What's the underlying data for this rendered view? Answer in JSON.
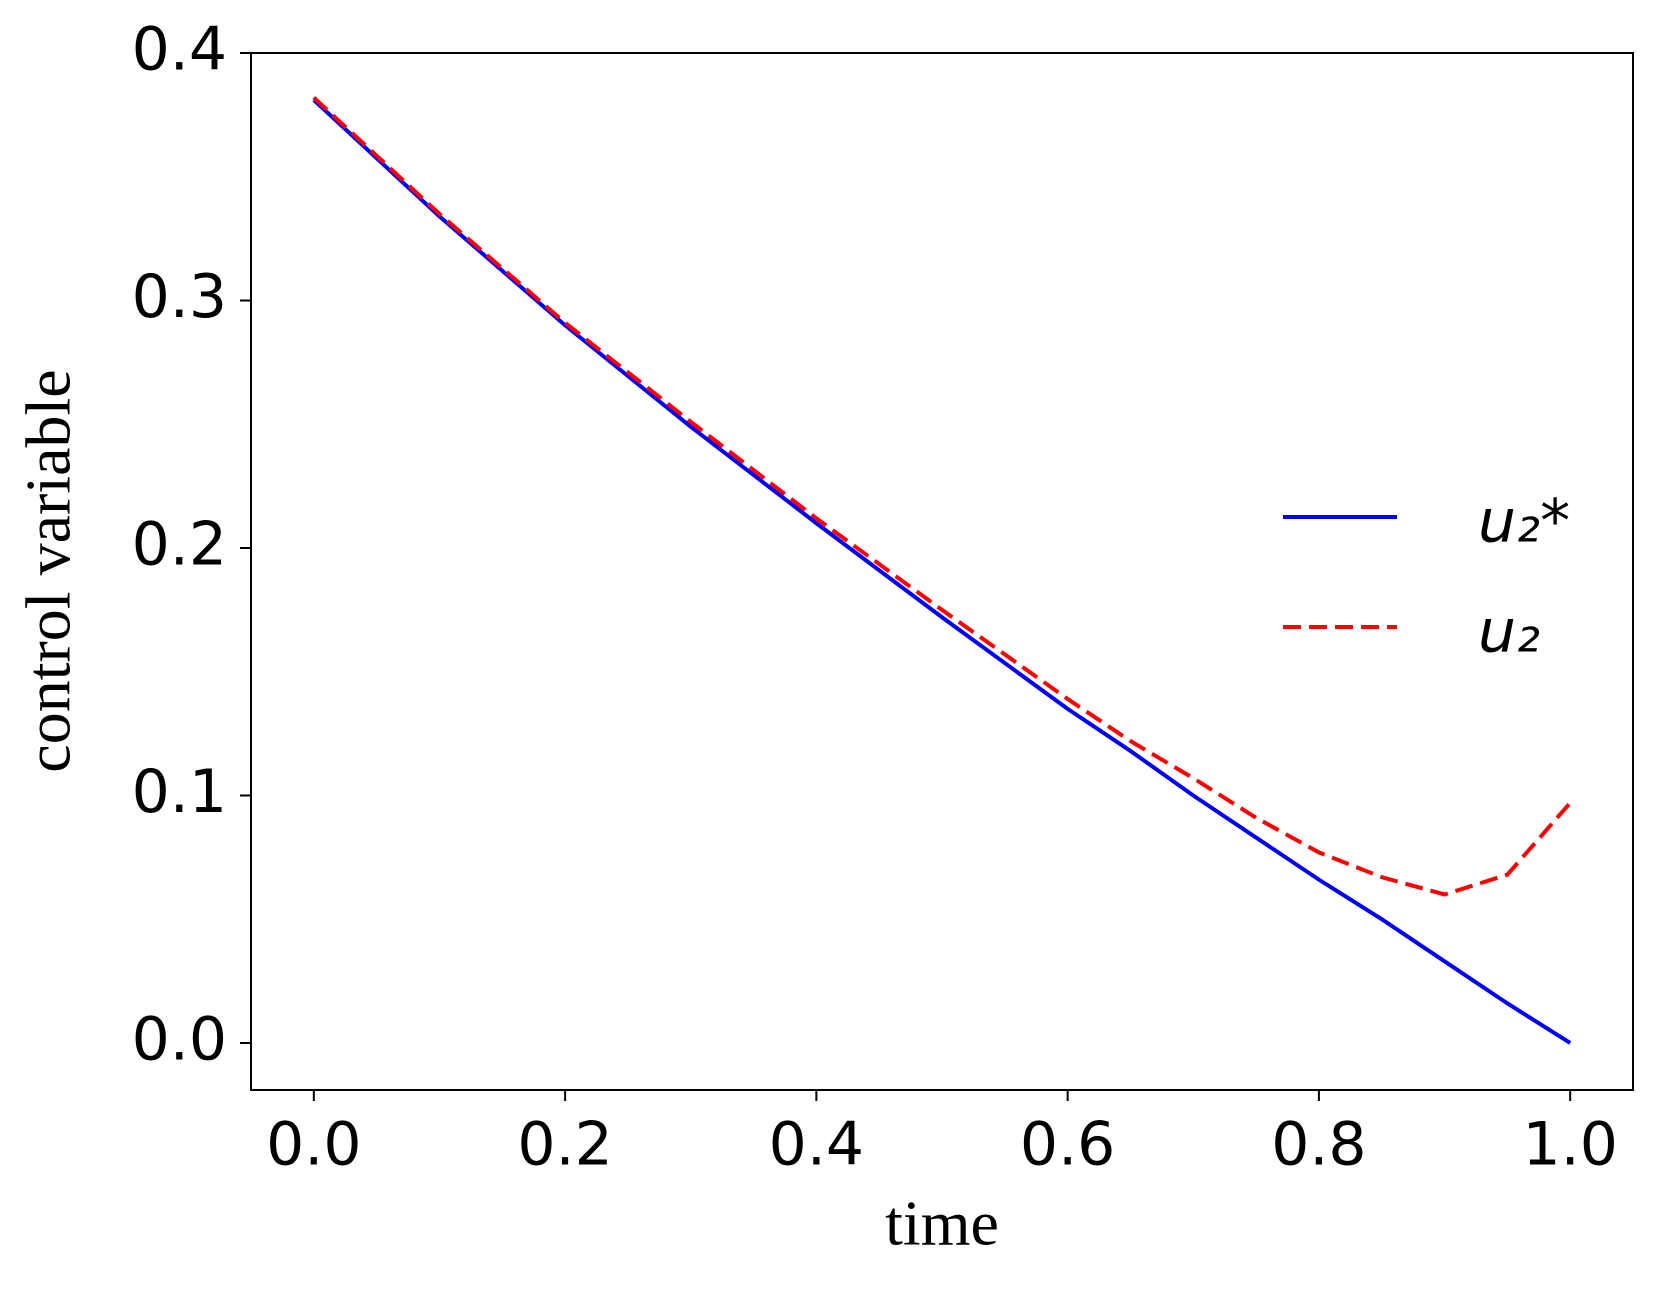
{
  "chart_data": {
    "type": "line",
    "xlabel": "time",
    "ylabel": "control variable",
    "x": [
      0,
      0.1,
      0.2,
      0.3,
      0.4,
      0.5,
      0.6,
      0.65,
      0.7,
      0.75,
      0.8,
      0.85,
      0.9,
      0.95,
      1.0
    ],
    "series": [
      {
        "name": "u₂*",
        "color": "#0000ff",
        "dash": false,
        "values": [
          0.381,
          0.334,
          0.29,
          0.249,
          0.21,
          0.172,
          0.135,
          0.118,
          0.1,
          0.083,
          0.066,
          0.05,
          0.033,
          0.016,
          0
        ]
      },
      {
        "name": "u₂",
        "color": "#ff0000",
        "dash": true,
        "values": [
          0.382,
          0.335,
          0.291,
          0.251,
          0.212,
          0.175,
          0.139,
          0.122,
          0.107,
          0.091,
          0.077,
          0.067,
          0.06,
          0.068,
          0.097
        ]
      }
    ],
    "xlim": [
      -0.05,
      1.05
    ],
    "ylim": [
      -0.019,
      0.4
    ],
    "xticks": [
      {
        "value": 0,
        "label": "0.0"
      },
      0.2,
      0.4,
      0.6,
      0.8,
      {
        "value": 1,
        "label": "1.0"
      }
    ],
    "yticks": [
      {
        "value": 0,
        "label": "0.0"
      },
      0.1,
      0.2,
      0.3,
      0.4
    ],
    "legend": "center right",
    "grid": false
  }
}
